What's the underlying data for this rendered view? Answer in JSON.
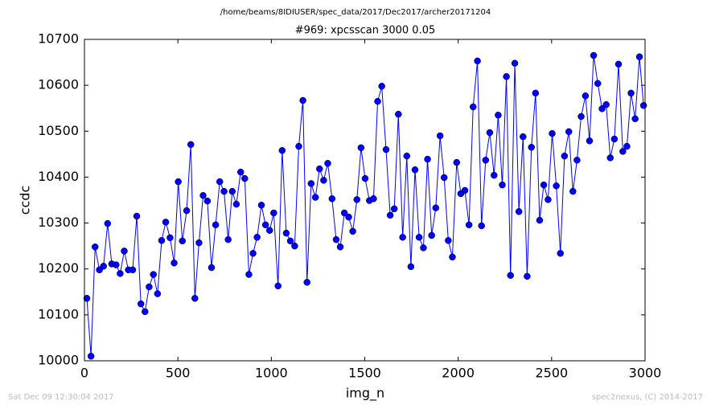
{
  "chart_data": {
    "type": "line",
    "suptitle": "/home/beams/8IDIUSER/spec_data/2017/Dec2017/archer20171204",
    "title": "#969: xpcsscan 3000 0.05",
    "xlabel": "img_n",
    "ylabel": "ccdc",
    "footer_left": "Sat Dec 09 12:30:04 2017",
    "footer_right": "spec2nexus, (C) 2014-2017",
    "xlim": [
      0,
      3000
    ],
    "ylim": [
      10000,
      10700
    ],
    "xticks": [
      0,
      500,
      1000,
      1500,
      2000,
      2500,
      3000
    ],
    "yticks": [
      10000,
      10100,
      10200,
      10300,
      10400,
      10500,
      10600,
      10700
    ],
    "x": [
      13,
      35,
      57,
      80,
      102,
      124,
      146,
      169,
      191,
      213,
      235,
      258,
      280,
      302,
      324,
      346,
      369,
      391,
      413,
      435,
      458,
      480,
      502,
      524,
      547,
      569,
      591,
      613,
      635,
      658,
      680,
      702,
      724,
      747,
      769,
      791,
      813,
      836,
      858,
      880,
      902,
      924,
      947,
      969,
      991,
      1013,
      1036,
      1058,
      1080,
      1102,
      1125,
      1147,
      1169,
      1191,
      1213,
      1236,
      1258,
      1280,
      1302,
      1325,
      1347,
      1369,
      1391,
      1414,
      1436,
      1458,
      1480,
      1502,
      1525,
      1547,
      1569,
      1591,
      1614,
      1636,
      1658,
      1680,
      1703,
      1725,
      1747,
      1769,
      1791,
      1814,
      1836,
      1858,
      1880,
      1903,
      1925,
      1947,
      1969,
      1992,
      2014,
      2036,
      2058,
      2080,
      2103,
      2125,
      2147,
      2169,
      2192,
      2214,
      2236,
      2258,
      2280,
      2303,
      2325,
      2347,
      2369,
      2392,
      2414,
      2436,
      2458,
      2481,
      2503,
      2525,
      2547,
      2569,
      2592,
      2614,
      2636,
      2658,
      2681,
      2703,
      2725,
      2747,
      2770,
      2792,
      2814,
      2836,
      2858,
      2881,
      2903,
      2925,
      2947,
      2970,
      2992
    ],
    "series": [
      {
        "name": "ccdc",
        "color": "#0000ff",
        "values": [
          10136,
          10010,
          10248,
          10198,
          10206,
          10299,
          10211,
          10209,
          10190,
          10239,
          10198,
          10198,
          10315,
          10124,
          10107,
          10161,
          10188,
          10146,
          10262,
          10302,
          10268,
          10213,
          10390,
          10261,
          10327,
          10471,
          10136,
          10257,
          10360,
          10348,
          10203,
          10296,
          10390,
          10369,
          10264,
          10369,
          10341,
          10411,
          10397,
          10188,
          10234,
          10269,
          10339,
          10296,
          10284,
          10322,
          10163,
          10458,
          10278,
          10261,
          10250,
          10467,
          10567,
          10171,
          10386,
          10356,
          10418,
          10393,
          10430,
          10353,
          10264,
          10248,
          10322,
          10313,
          10282,
          10351,
          10464,
          10397,
          10349,
          10353,
          10565,
          10598,
          10460,
          10317,
          10331,
          10537,
          10269,
          10446,
          10205,
          10416,
          10269,
          10246,
          10439,
          10273,
          10333,
          10490,
          10399,
          10262,
          10226,
          10432,
          10364,
          10371,
          10296,
          10553,
          10653,
          10294,
          10437,
          10497,
          10404,
          10535,
          10383,
          10619,
          10186,
          10648,
          10325,
          10488,
          10184,
          10465,
          10583,
          10306,
          10383,
          10351,
          10495,
          10381,
          10234,
          10446,
          10499,
          10369,
          10437,
          10532,
          10577,
          10479,
          10665,
          10604,
          10549,
          10558,
          10442,
          10483,
          10646,
          10456,
          10467,
          10583,
          10527,
          10662,
          10556
        ]
      }
    ]
  }
}
